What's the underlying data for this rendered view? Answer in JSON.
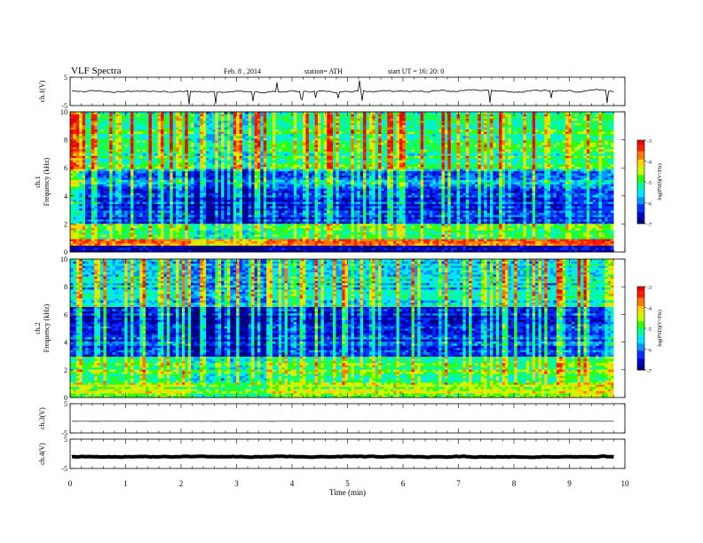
{
  "header": {
    "title": "VLF Spectra",
    "date": "Feb. 8 , 2014",
    "station": "station= ATH",
    "start": "start UT = 16: 20: 0"
  },
  "colormap": [
    "#00007a",
    "#0000c8",
    "#0032ff",
    "#0096ff",
    "#00e6ff",
    "#00ff96",
    "#32ff00",
    "#c8ff00",
    "#ffd200",
    "#ff7800",
    "#ff1e00",
    "#e60000",
    "#ffffff"
  ],
  "chart_data": [
    {
      "type": "line",
      "ylabel": "ch.1(V)",
      "ylim": [
        -5,
        5
      ],
      "yticks": [
        "5",
        "-5"
      ],
      "x_range_min": [
        0,
        9.8
      ],
      "series": [
        {
          "description": "ch.1 voltage trace, fluctuating near 0 V with spikes",
          "mean": 0,
          "amplitude": 0.8
        }
      ]
    },
    {
      "type": "heatmap",
      "ylabel": "ch.1\nFrequency (kHz)",
      "ylim": [
        0,
        10
      ],
      "yticks": [
        "0",
        "2",
        "4",
        "6",
        "8",
        "10"
      ],
      "colorbar": {
        "label": "log(PSD)(V²/Hz)",
        "min": -7,
        "max": -3,
        "ticks": [
          "-3",
          "-4",
          "-5",
          "-6",
          "-7"
        ]
      },
      "time_segments_min": [
        [
          0,
          2.2
        ],
        [
          2.2,
          3.55
        ],
        [
          3.55,
          8.85
        ],
        [
          8.85,
          9.8
        ]
      ],
      "background_level_by_band": [
        {
          "f_khz": [
            0,
            0.5
          ],
          "log_psd": -6.5
        },
        {
          "f_khz": [
            0.5,
            1
          ],
          "log_psd": -3.5
        },
        {
          "f_khz": [
            1,
            2
          ],
          "log_psd": -5.2
        },
        {
          "f_khz": [
            2,
            4.5
          ],
          "log_psd": -6.4
        },
        {
          "f_khz": [
            4.5,
            6
          ],
          "log_psd": -6.0
        },
        {
          "f_khz": [
            6,
            10
          ],
          "log_psd": -5.2
        }
      ]
    },
    {
      "type": "heatmap",
      "ylabel": "ch.2\nFrequency (kHz)",
      "ylim": [
        0,
        10
      ],
      "yticks": [
        "0",
        "2",
        "4",
        "6",
        "8",
        "10"
      ],
      "colorbar": {
        "label": "log(PSD)(V²/Hz)",
        "min": -7,
        "max": -3,
        "ticks": [
          "-3",
          "-4",
          "-5",
          "-6",
          "-7"
        ]
      },
      "time_segments_min": [
        [
          0,
          2.2
        ],
        [
          2.2,
          3.55
        ],
        [
          3.55,
          8.85
        ],
        [
          8.85,
          9.8
        ]
      ],
      "background_level_by_band": [
        {
          "f_khz": [
            0,
            1
          ],
          "log_psd": -4.5
        },
        {
          "f_khz": [
            1,
            3
          ],
          "log_psd": -5.0
        },
        {
          "f_khz": [
            3,
            5
          ],
          "log_psd": -6.3
        },
        {
          "f_khz": [
            5,
            6.5
          ],
          "log_psd": -6.5
        },
        {
          "f_khz": [
            6.5,
            10
          ],
          "log_psd": -5.6
        }
      ]
    },
    {
      "type": "line",
      "ylabel": "ch.3(V)",
      "ylim": [
        -5,
        5
      ],
      "yticks": [
        "5",
        "-5"
      ],
      "series": [
        {
          "description": "ch.3 flat trace",
          "mean": -1,
          "amplitude": 0.05
        }
      ]
    },
    {
      "type": "line",
      "ylabel": "ch.4(V)",
      "ylim": [
        -5,
        5
      ],
      "yticks": [
        "5",
        "-5"
      ],
      "xlabel": "Time (min)",
      "xlim": [
        0,
        10
      ],
      "xticks": [
        "0",
        "1",
        "2",
        "3",
        "4",
        "5",
        "6",
        "7",
        "8",
        "9",
        "10"
      ],
      "series": [
        {
          "description": "ch.4 thick flat trace",
          "mean": -1,
          "amplitude": 0.3
        }
      ]
    }
  ]
}
